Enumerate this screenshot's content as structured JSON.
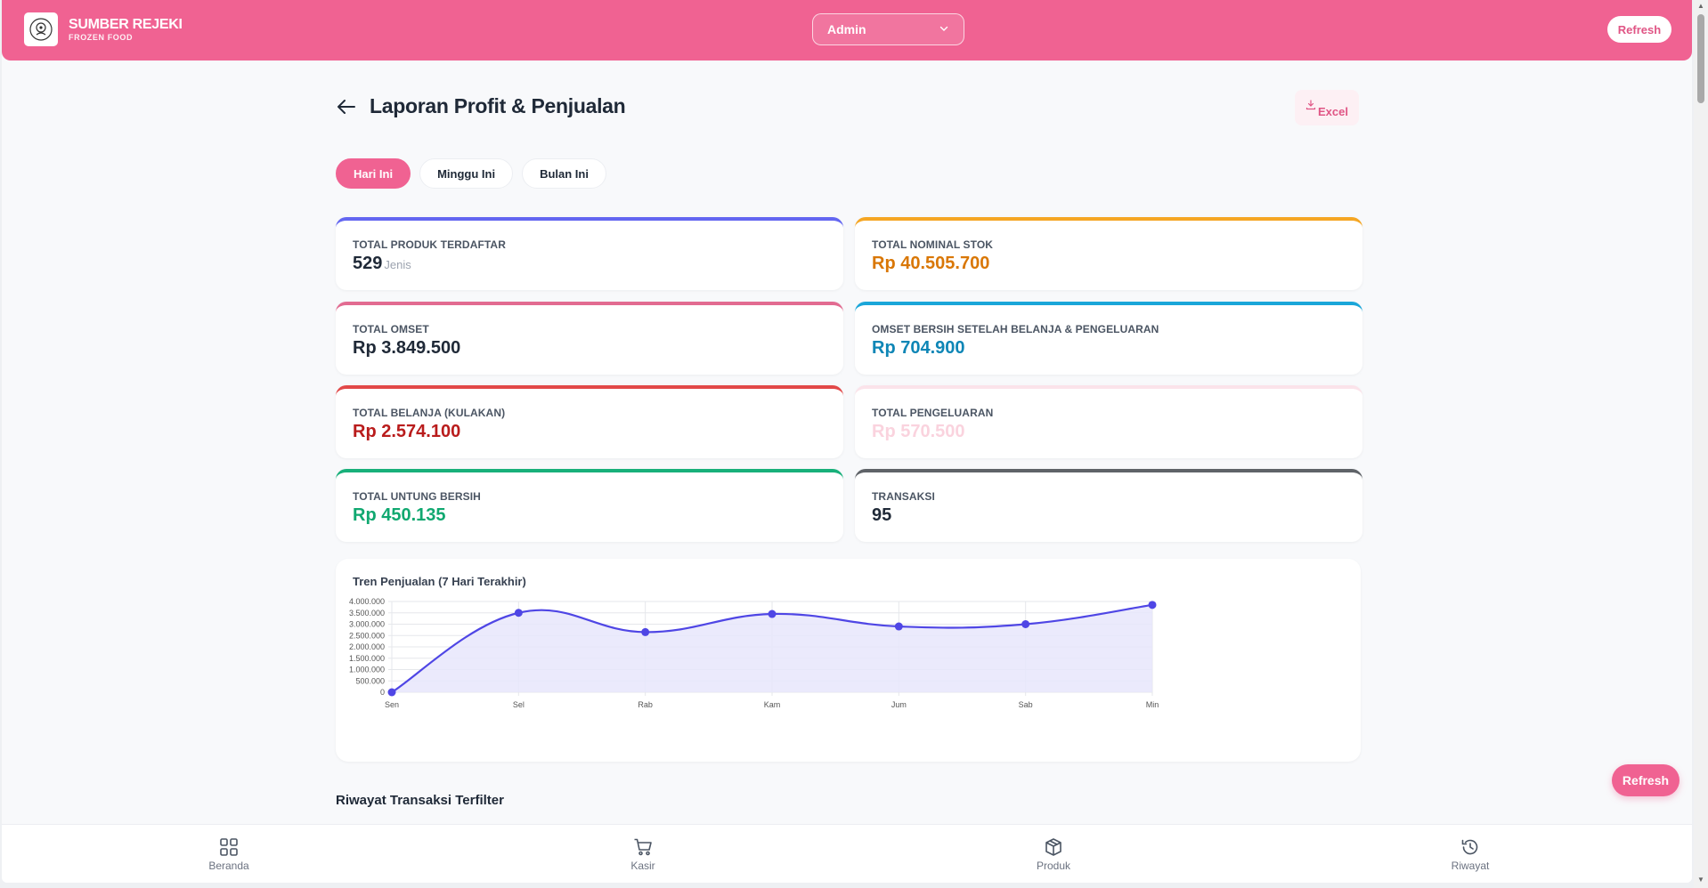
{
  "brand": {
    "name": "SUMBER REJEKI",
    "tagline": "FROZEN FOOD"
  },
  "header": {
    "role": "Admin",
    "refresh_label": "Refresh"
  },
  "page": {
    "title": "Laporan Profit & Penjualan",
    "export_label": "Excel"
  },
  "tabs": [
    {
      "label": "Hari Ini",
      "active": true
    },
    {
      "label": "Minggu Ini",
      "active": false
    },
    {
      "label": "Bulan Ini",
      "active": false
    }
  ],
  "stats": [
    {
      "label": "TOTAL PRODUK TERDAFTAR",
      "value": "529",
      "unit": "Jenis",
      "accent": "#6366f1",
      "value_color": "#1f2937"
    },
    {
      "label": "TOTAL NOMINAL STOK",
      "value": "Rp 40.505.700",
      "unit": "",
      "accent": "#f5a623",
      "value_color": "#d97706"
    },
    {
      "label": "TOTAL OMSET",
      "value": "Rp 3.849.500",
      "unit": "",
      "accent": "#e26b91",
      "value_color": "#1f2937"
    },
    {
      "label": "OMSET BERSIH SETELAH BELANJA & PENGELUARAN",
      "value": "Rp 704.900",
      "unit": "",
      "accent": "#1aa6d9",
      "value_color": "#0e86b6"
    },
    {
      "label": "TOTAL BELANJA (KULAKAN)",
      "value": "Rp 2.574.100",
      "unit": "",
      "accent": "#e24848",
      "value_color": "#b91c1c"
    },
    {
      "label": "TOTAL PENGELUARAN",
      "value": "Rp 570.500",
      "unit": "",
      "accent": "#fbe3ea",
      "value_color": "#fad3de"
    },
    {
      "label": "TOTAL UNTUNG BERSIH",
      "value": "Rp 450.135",
      "unit": "",
      "accent": "#18b07a",
      "value_color": "#10a870"
    },
    {
      "label": "TRANSAKSI",
      "value": "95",
      "unit": "",
      "accent": "#5f6368",
      "value_color": "#1f2937"
    }
  ],
  "chart_data": {
    "type": "line",
    "title": "Tren Penjualan (7 Hari Terakhir)",
    "categories": [
      "Sen",
      "Sel",
      "Rab",
      "Kam",
      "Jum",
      "Sab",
      "Min"
    ],
    "values": [
      0,
      3500000,
      2650000,
      3450000,
      2900000,
      3000000,
      3850000
    ],
    "ylim": [
      0,
      4000000
    ],
    "yticks": [
      "4.000.000",
      "3.500.000",
      "3.000.000",
      "2.500.000",
      "2.000.000",
      "1.500.000",
      "1.000.000",
      "500.000",
      "0"
    ],
    "grid": true,
    "line_color": "#4f46e5",
    "fill_color": "#e8e6fb"
  },
  "section": {
    "title": "Riwayat Transaksi Terfilter"
  },
  "floating": {
    "refresh_label": "Refresh"
  },
  "nav": [
    {
      "label": "Beranda",
      "icon": "grid-icon"
    },
    {
      "label": "Kasir",
      "icon": "cart-icon"
    },
    {
      "label": "Produk",
      "icon": "box-icon"
    },
    {
      "label": "Riwayat",
      "icon": "history-icon"
    }
  ]
}
